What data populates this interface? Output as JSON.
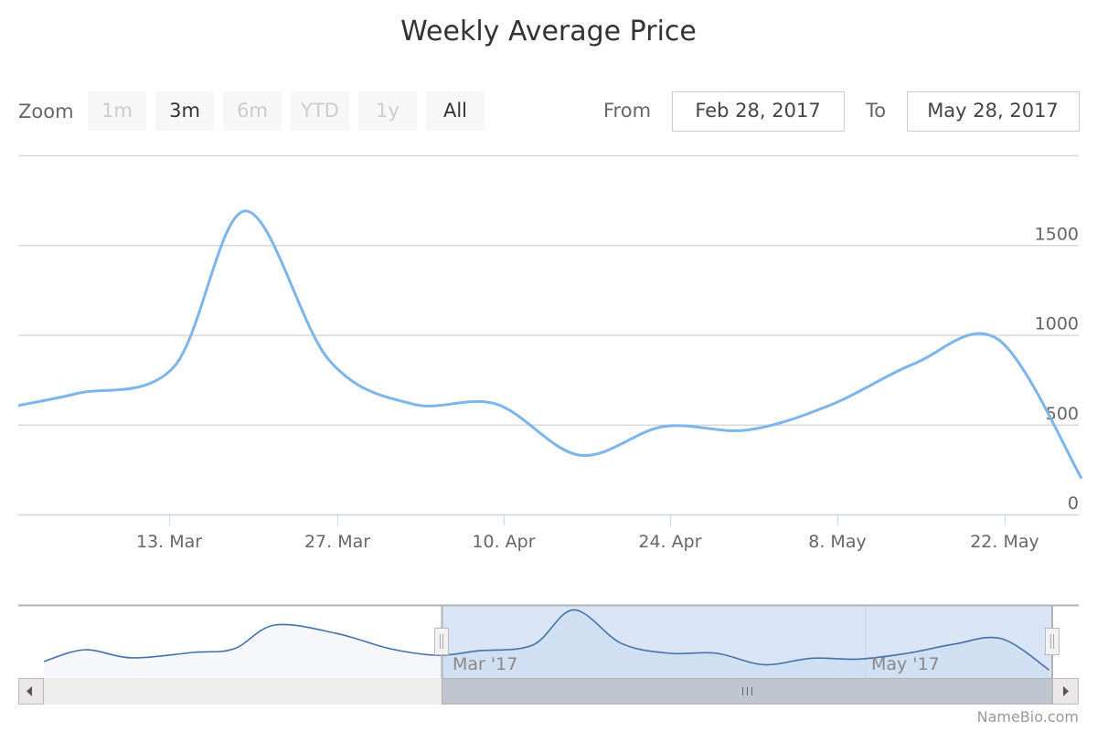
{
  "chart_data": {
    "type": "line",
    "title": "Weekly Average Price",
    "range_selector": {
      "label": "Zoom",
      "buttons": [
        {
          "label": "1m",
          "enabled": false
        },
        {
          "label": "3m",
          "enabled": true
        },
        {
          "label": "6m",
          "enabled": false
        },
        {
          "label": "YTD",
          "enabled": false
        },
        {
          "label": "1y",
          "enabled": false
        },
        {
          "label": "All",
          "enabled": true
        }
      ],
      "from_label": "From",
      "from_value": "Feb 28, 2017",
      "to_label": "To",
      "to_value": "May 28, 2017"
    },
    "x_ticks": [
      "13. Mar",
      "27. Mar",
      "10. Apr",
      "24. Apr",
      "8. May",
      "22. May"
    ],
    "y_ticks": [
      "0",
      "500",
      "1000",
      "1500"
    ],
    "ylim": [
      0,
      2000
    ],
    "grid": true,
    "series_color": "#7cb5ec",
    "navigator_color": "#4572a7",
    "series": [
      {
        "x": [
          "2017-02-28",
          "2017-03-05",
          "2017-03-13",
          "2017-03-19",
          "2017-03-26",
          "2017-04-02",
          "2017-04-09",
          "2017-04-16",
          "2017-04-23",
          "2017-04-30",
          "2017-05-07",
          "2017-05-14",
          "2017-05-21",
          "2017-05-28"
        ],
        "values": [
          607,
          675,
          820,
          1690,
          860,
          615,
          615,
          330,
          490,
          470,
          610,
          840,
          975,
          200
        ]
      }
    ],
    "navigator": {
      "x": [
        "2016-12-31",
        "2017-01-06",
        "2017-01-13",
        "2017-01-22",
        "2017-01-28",
        "2017-02-03",
        "2017-02-12",
        "2017-02-20",
        "2017-02-27",
        "2017-03-05",
        "2017-03-13",
        "2017-03-19",
        "2017-03-26",
        "2017-04-02",
        "2017-04-09",
        "2017-04-16",
        "2017-04-23",
        "2017-04-30",
        "2017-05-07",
        "2017-05-14",
        "2017-05-21",
        "2017-05-28"
      ],
      "values": [
        410,
        700,
        500,
        635,
        725,
        1315,
        1110,
        725,
        565,
        675,
        820,
        1690,
        860,
        615,
        615,
        330,
        490,
        470,
        610,
        840,
        975,
        200
      ],
      "labels": [
        "Mar '17",
        "May '17"
      ]
    },
    "credit": "NameBio.com"
  }
}
